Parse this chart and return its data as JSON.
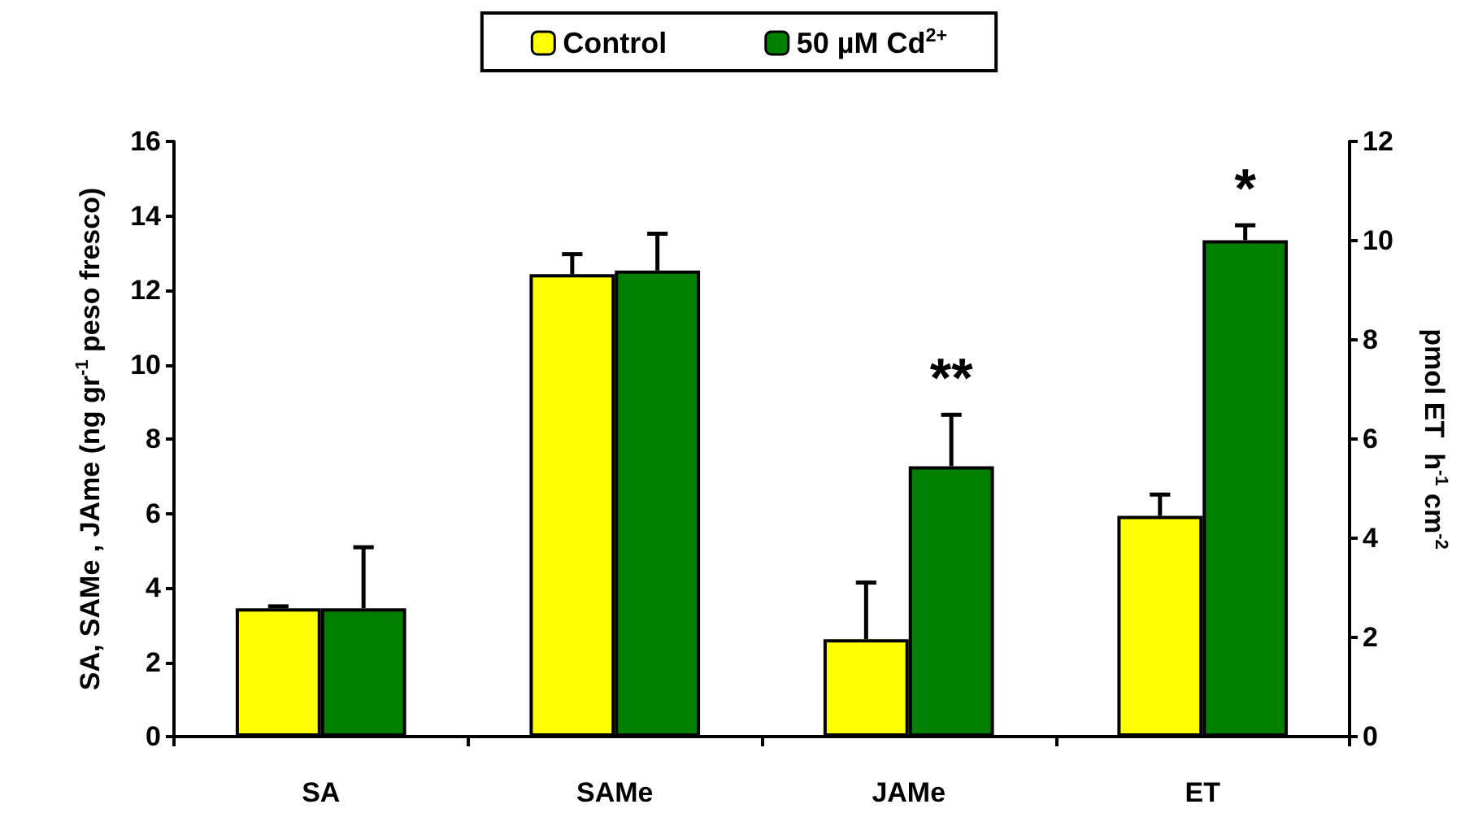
{
  "chart_data": {
    "type": "bar",
    "categories": [
      "SA",
      "SAMe",
      "JAMe",
      "ET"
    ],
    "ylabel": "SA, SAMe , JAme (ng gr$^{-1}$ peso fresco)",
    "y2label": "pmol ET  h$^{-1}$ cm$^{-2}$",
    "ylim": [
      0,
      16
    ],
    "yticks": [
      0,
      2,
      4,
      6,
      8,
      10,
      12,
      14,
      16
    ],
    "y2lim": [
      0,
      12
    ],
    "y2ticks": [
      0,
      2,
      4,
      6,
      8,
      10,
      12
    ],
    "grid": false,
    "legend": "top",
    "annotations": [
      {
        "text": "**",
        "x": "JAMe",
        "y": 7.27
      },
      {
        "text": "*",
        "x": "ET",
        "y": 10.01
      }
    ],
    "series": [
      {
        "name": "Control",
        "color": "#ffff00",
        "values": [
          3.45,
          12.43,
          2.62,
          null
        ],
        "errors": [
          [
            3.45,
            3.5
          ],
          [
            12.43,
            12.97
          ],
          [
            2.62,
            4.14
          ],
          null
        ]
      },
      {
        "name": "50 µM Cd$^{2+}$",
        "color": "#008000",
        "values": [
          3.45,
          12.53,
          7.27,
          null
        ],
        "errors": [
          [
            3.45,
            5.09
          ],
          [
            12.53,
            13.52
          ],
          [
            7.27,
            8.65
          ],
          null
        ]
      },
      {
        "color": "#ffff00",
        "axis": "y2",
        "values": [
          null,
          null,
          null,
          4.45
        ],
        "errors": [
          null,
          null,
          null,
          [
            4.45,
            4.88
          ]
        ]
      },
      {
        "color": "#008000",
        "axis": "y2",
        "values": [
          null,
          null,
          null,
          10.01
        ],
        "errors": [
          null,
          null,
          null,
          [
            10.01,
            10.31
          ]
        ]
      }
    ]
  }
}
